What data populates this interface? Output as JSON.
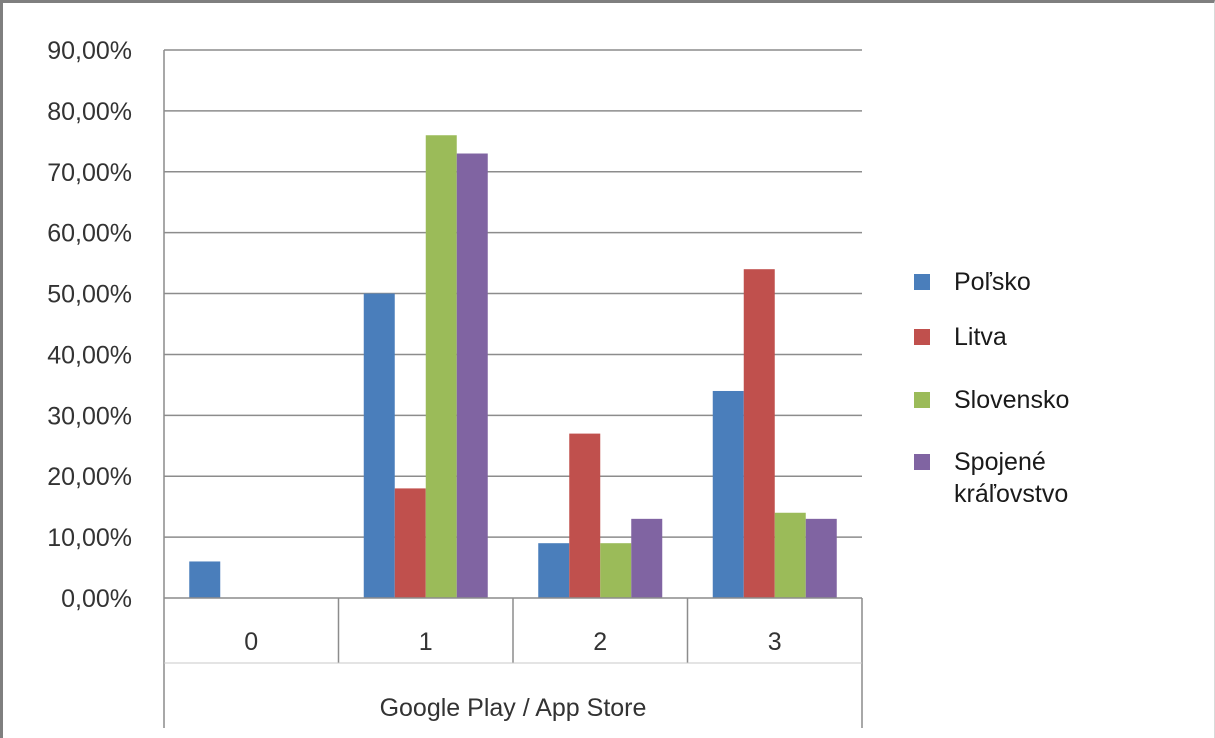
{
  "chart_data": {
    "type": "bar",
    "categories": [
      "0",
      "1",
      "2",
      "3"
    ],
    "xlabel": "Google Play / App Store",
    "ylabel": "",
    "ylim": [
      0,
      0.9
    ],
    "y_ticks": [
      "0,00%",
      "10,00%",
      "20,00%",
      "30,00%",
      "40,00%",
      "50,00%",
      "60,00%",
      "70,00%",
      "80,00%",
      "90,00%"
    ],
    "grid": true,
    "legend_position": "right",
    "series": [
      {
        "name": "Poľsko",
        "color": "#4a7ebb",
        "values": [
          0.06,
          0.5,
          0.09,
          0.34
        ]
      },
      {
        "name": "Litva",
        "color": "#c0504d",
        "values": [
          0.0,
          0.18,
          0.27,
          0.54
        ]
      },
      {
        "name": "Slovensko",
        "color": "#9bbb59",
        "values": [
          0.0,
          0.76,
          0.09,
          0.14
        ]
      },
      {
        "name": "Spojené kráľovstvo",
        "name_lines": [
          "Spojené",
          "kráľovstvo"
        ],
        "color": "#8064a2",
        "values": [
          0.0,
          0.73,
          0.13,
          0.13
        ]
      }
    ]
  }
}
